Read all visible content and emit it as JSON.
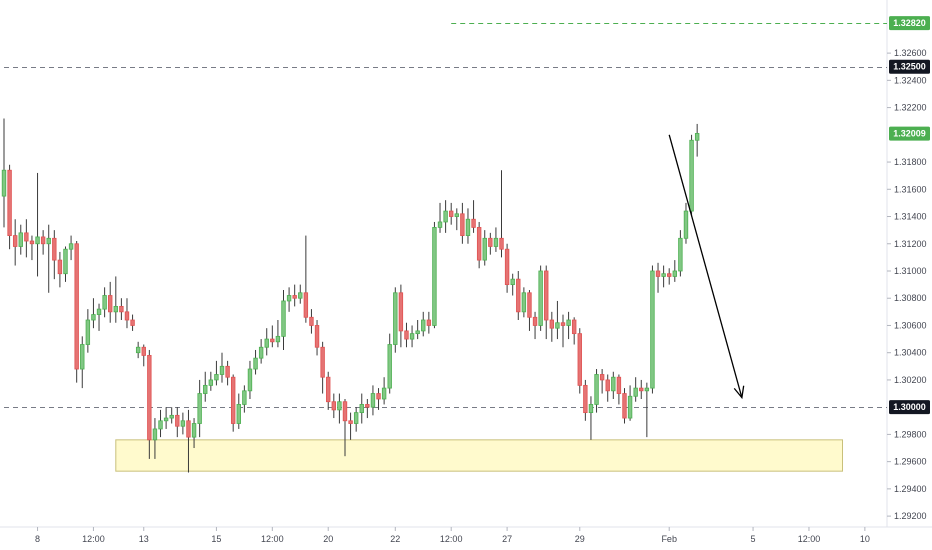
{
  "chart_data": {
    "type": "candlestick",
    "title": "",
    "xlabel": "",
    "ylabel": "",
    "ylim": [
      1.2912,
      1.3299
    ],
    "y_ticks": [
      "1.32600",
      "1.32400",
      "1.32200",
      "1.31800",
      "1.31600",
      "1.31400",
      "1.31200",
      "1.31000",
      "1.30800",
      "1.30600",
      "1.30400",
      "1.30200",
      "1.29800",
      "1.29600",
      "1.29400",
      "1.29200"
    ],
    "x_ticks": [
      "8",
      "12:00",
      "13",
      "15",
      "12:00",
      "20",
      "22",
      "12:00",
      "27",
      "29",
      "Feb",
      "5",
      "12:00",
      "10"
    ],
    "price_tags": [
      {
        "label": "1.32820",
        "value": 1.3282,
        "bg": "#4caf50",
        "fg": "#ffffff"
      },
      {
        "label": "1.32500",
        "value": 1.325,
        "bg": "#131722",
        "fg": "#ffffff"
      },
      {
        "label": "1.32009",
        "value": 1.32009,
        "bg": "#4caf50",
        "fg": "#ffffff"
      },
      {
        "label": "1.30000",
        "value": 1.3,
        "bg": "#131722",
        "fg": "#ffffff"
      }
    ],
    "horizontal_lines": [
      {
        "value": 1.3282,
        "style": "dashed",
        "color": "#4caf50",
        "x_start_index": 80
      },
      {
        "value": 1.325,
        "style": "dashed",
        "color": "#787b86",
        "x_start_index": 0
      },
      {
        "value": 1.3,
        "style": "dashed",
        "color": "#787b86",
        "x_start_index": 0
      }
    ],
    "support_zone": {
      "low": 1.2953,
      "high": 1.2976,
      "from_index": 20,
      "to_index": 150,
      "fill": "#fff9c4",
      "border": "#c9c07a"
    },
    "projection_arrow": {
      "from_index": 119,
      "from_value": 1.32,
      "to_index": 132,
      "to_value": 1.3007,
      "color": "#000000"
    },
    "colors": {
      "up": "#4caf50",
      "down": "#e05252",
      "up_fill": "#81c784",
      "down_fill": "#e57373"
    },
    "candles": [
      [
        1.3155,
        1.3174,
        1.3212,
        1.3132
      ],
      [
        1.3174,
        1.3126,
        1.3178,
        1.3116
      ],
      [
        1.3126,
        1.3118,
        1.3138,
        1.3104
      ],
      [
        1.3118,
        1.3128,
        1.3134,
        1.3112
      ],
      [
        1.3128,
        1.3122,
        1.3138,
        1.311
      ],
      [
        1.3122,
        1.312,
        1.3126,
        1.3108
      ],
      [
        1.312,
        1.3125,
        1.3172,
        1.3096
      ],
      [
        1.3125,
        1.312,
        1.313,
        1.3112
      ],
      [
        1.312,
        1.3124,
        1.3134,
        1.3084
      ],
      [
        1.3124,
        1.3108,
        1.313,
        1.3094
      ],
      [
        1.3108,
        1.3098,
        1.3114,
        1.3088
      ],
      [
        1.3098,
        1.3116,
        1.3118,
        1.3092
      ],
      [
        1.3116,
        1.312,
        1.3126,
        1.3108
      ],
      [
        1.312,
        1.3028,
        1.3122,
        1.3018
      ],
      [
        1.3028,
        1.3046,
        1.3052,
        1.3014
      ],
      [
        1.3046,
        1.3064,
        1.3072,
        1.304
      ],
      [
        1.3064,
        1.3068,
        1.308,
        1.3058
      ],
      [
        1.3068,
        1.3072,
        1.3076,
        1.3056
      ],
      [
        1.3072,
        1.3082,
        1.3088,
        1.3066
      ],
      [
        1.3082,
        1.307,
        1.3092,
        1.3062
      ],
      [
        1.307,
        1.3074,
        1.3096,
        1.3062
      ],
      [
        1.3074,
        1.307,
        1.308,
        1.3064
      ],
      [
        1.307,
        1.3064,
        1.308,
        1.3058
      ],
      [
        1.3064,
        1.306,
        1.3068,
        1.3056
      ],
      [
        1.304,
        1.3044,
        1.3048,
        1.3036
      ],
      [
        1.3044,
        1.3038,
        1.3046,
        1.303
      ],
      [
        1.3038,
        1.2976,
        1.3042,
        1.2962
      ],
      [
        1.2976,
        1.2984,
        1.2992,
        1.2962
      ],
      [
        1.2984,
        1.299,
        1.2998,
        1.2978
      ],
      [
        1.299,
        1.2992,
        1.3,
        1.2984
      ],
      [
        1.2992,
        1.2994,
        1.3,
        1.2988
      ],
      [
        1.2994,
        1.2986,
        1.3,
        1.2978
      ],
      [
        1.2986,
        1.299,
        1.2996,
        1.298
      ],
      [
        1.299,
        1.2978,
        1.2998,
        1.2952
      ],
      [
        1.2978,
        1.2988,
        1.2992,
        1.297
      ],
      [
        1.2988,
        1.301,
        1.302,
        1.2978
      ],
      [
        1.301,
        1.3016,
        1.3026,
        1.3004
      ],
      [
        1.3016,
        1.302,
        1.3026,
        1.3012
      ],
      [
        1.302,
        1.3024,
        1.3034,
        1.3016
      ],
      [
        1.3024,
        1.303,
        1.304,
        1.3018
      ],
      [
        1.303,
        1.3022,
        1.3034,
        1.3016
      ],
      [
        1.3022,
        1.2988,
        1.3024,
        1.2982
      ],
      [
        1.2988,
        1.3002,
        1.301,
        1.2984
      ],
      [
        1.3002,
        1.3012,
        1.3016,
        1.2996
      ],
      [
        1.3012,
        1.3028,
        1.3034,
        1.3006
      ],
      [
        1.3028,
        1.3036,
        1.3042,
        1.3024
      ],
      [
        1.3036,
        1.3044,
        1.305,
        1.3032
      ],
      [
        1.3044,
        1.305,
        1.3058,
        1.3038
      ],
      [
        1.305,
        1.3048,
        1.306,
        1.3044
      ],
      [
        1.3048,
        1.3052,
        1.3064,
        1.3044
      ],
      [
        1.3052,
        1.3078,
        1.3086,
        1.3042
      ],
      [
        1.3078,
        1.3082,
        1.3088,
        1.307
      ],
      [
        1.3082,
        1.308,
        1.309,
        1.3074
      ],
      [
        1.308,
        1.3084,
        1.309,
        1.3076
      ],
      [
        1.3084,
        1.3066,
        1.3126,
        1.3062
      ],
      [
        1.3066,
        1.306,
        1.3072,
        1.3054
      ],
      [
        1.306,
        1.3044,
        1.3064,
        1.3038
      ],
      [
        1.3044,
        1.3022,
        1.3048,
        1.301
      ],
      [
        1.3022,
        1.3004,
        1.3026,
        1.2998
      ],
      [
        1.3004,
        1.2998,
        1.301,
        1.2992
      ],
      [
        1.2998,
        1.3004,
        1.301,
        1.2988
      ],
      [
        1.3004,
        1.299,
        1.3006,
        1.2964
      ],
      [
        1.299,
        1.2988,
        1.2996,
        1.2976
      ],
      [
        1.2988,
        1.2996,
        1.3,
        1.2982
      ],
      [
        1.2996,
        1.3002,
        1.301,
        1.2988
      ],
      [
        1.3002,
        1.3,
        1.3006,
        1.2992
      ],
      [
        1.3,
        1.301,
        1.3016,
        1.2994
      ],
      [
        1.301,
        1.3006,
        1.3014,
        1.2998
      ],
      [
        1.3006,
        1.3014,
        1.3022,
        1.3002
      ],
      [
        1.3014,
        1.3046,
        1.3054,
        1.301
      ],
      [
        1.3046,
        1.3084,
        1.3088,
        1.304
      ],
      [
        1.3084,
        1.3056,
        1.309,
        1.3044
      ],
      [
        1.3056,
        1.305,
        1.3062,
        1.3044
      ],
      [
        1.305,
        1.3054,
        1.306,
        1.3044
      ],
      [
        1.3054,
        1.3056,
        1.3064,
        1.305
      ],
      [
        1.3056,
        1.3064,
        1.307,
        1.3052
      ],
      [
        1.3064,
        1.306,
        1.307,
        1.3054
      ],
      [
        1.306,
        1.3132,
        1.3136,
        1.3058
      ],
      [
        1.3132,
        1.3136,
        1.315,
        1.3128
      ],
      [
        1.3136,
        1.3144,
        1.3152,
        1.3128
      ],
      [
        1.3144,
        1.314,
        1.315,
        1.3134
      ],
      [
        1.314,
        1.3142,
        1.3146,
        1.313
      ],
      [
        1.3142,
        1.3126,
        1.315,
        1.312
      ],
      [
        1.3126,
        1.3138,
        1.3146,
        1.312
      ],
      [
        1.3138,
        1.3132,
        1.3152,
        1.3128
      ],
      [
        1.3132,
        1.3108,
        1.3136,
        1.3102
      ],
      [
        1.3108,
        1.3124,
        1.313,
        1.3104
      ],
      [
        1.3124,
        1.3118,
        1.3128,
        1.3112
      ],
      [
        1.3118,
        1.3124,
        1.3132,
        1.3114
      ],
      [
        1.3124,
        1.3116,
        1.3174,
        1.311
      ],
      [
        1.3116,
        1.309,
        1.312,
        1.3084
      ],
      [
        1.309,
        1.3094,
        1.3098,
        1.3082
      ],
      [
        1.3094,
        1.307,
        1.31,
        1.3064
      ],
      [
        1.307,
        1.3084,
        1.3088,
        1.3066
      ],
      [
        1.3084,
        1.3066,
        1.3086,
        1.3056
      ],
      [
        1.3066,
        1.306,
        1.307,
        1.305
      ],
      [
        1.306,
        1.31,
        1.3104,
        1.3056
      ],
      [
        1.31,
        1.3064,
        1.3104,
        1.305
      ],
      [
        1.3064,
        1.3058,
        1.307,
        1.3048
      ],
      [
        1.3058,
        1.3062,
        1.3078,
        1.305
      ],
      [
        1.3062,
        1.306,
        1.3068,
        1.3044
      ],
      [
        1.306,
        1.3064,
        1.307,
        1.305
      ],
      [
        1.3064,
        1.3054,
        1.3066,
        1.3046
      ],
      [
        1.3054,
        1.3016,
        1.3058,
        1.301
      ],
      [
        1.3016,
        1.2996,
        1.302,
        1.299
      ],
      [
        1.2996,
        1.3002,
        1.3008,
        1.2976
      ],
      [
        1.3002,
        1.3024,
        1.3028,
        1.2996
      ],
      [
        1.3024,
        1.302,
        1.3028,
        1.301
      ],
      [
        1.302,
        1.3012,
        1.3024,
        1.3004
      ],
      [
        1.3012,
        1.3022,
        1.3026,
        1.3006
      ],
      [
        1.3022,
        1.301,
        1.3024,
        1.3002
      ],
      [
        1.301,
        1.2992,
        1.3014,
        1.2988
      ],
      [
        1.2992,
        1.3008,
        1.3016,
        1.299
      ],
      [
        1.3008,
        1.3014,
        1.3022,
        1.3004
      ],
      [
        1.3014,
        1.3012,
        1.302,
        1.3006
      ],
      [
        1.3012,
        1.3014,
        1.3018,
        1.2978
      ],
      [
        1.3014,
        1.31,
        1.3104,
        1.301
      ],
      [
        1.31,
        1.3096,
        1.3106,
        1.3084
      ],
      [
        1.3096,
        1.3098,
        1.3104,
        1.3088
      ],
      [
        1.3098,
        1.3096,
        1.3102,
        1.309
      ],
      [
        1.3096,
        1.31,
        1.3108,
        1.3092
      ],
      [
        1.31,
        1.3124,
        1.313,
        1.3096
      ],
      [
        1.3124,
        1.3144,
        1.315,
        1.312
      ],
      [
        1.3144,
        1.3196,
        1.32,
        1.314
      ],
      [
        1.3196,
        1.3201,
        1.3208,
        1.3184
      ]
    ]
  },
  "interactions": {
    "chart_area_label": "chart-pane"
  }
}
